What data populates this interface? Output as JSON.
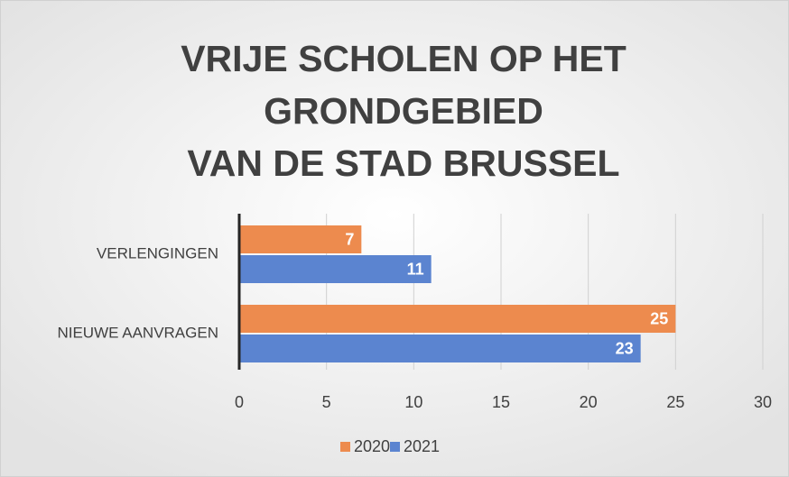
{
  "chart_data": {
    "type": "bar",
    "orientation": "horizontal",
    "title": [
      "VRIJE SCHOLEN OP HET",
      "GRONDGEBIED",
      "VAN DE STAD BRUSSEL"
    ],
    "categories": [
      "VERLENGINGEN",
      "NIEUWE AANVRAGEN"
    ],
    "series": [
      {
        "name": "2020",
        "color": "#ed8b4e",
        "values": [
          7,
          25
        ]
      },
      {
        "name": "2021",
        "color": "#5b84d0",
        "values": [
          11,
          23
        ]
      }
    ],
    "xlim": [
      0,
      30
    ],
    "xticks": [
      0,
      5,
      10,
      15,
      20,
      25,
      30
    ],
    "grid": true,
    "legend": "bottom"
  }
}
